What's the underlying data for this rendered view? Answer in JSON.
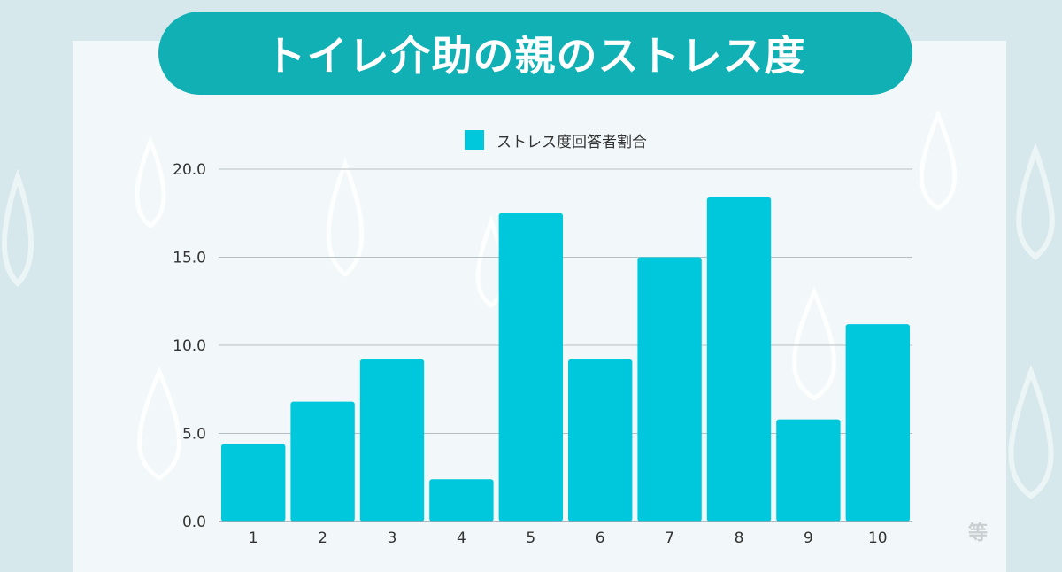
{
  "header": {
    "title": "トイレ介助の親のストレス度"
  },
  "watermark": "等",
  "colors": {
    "background": "#d6e8ec",
    "panel": "#f2f8f9",
    "title_pill": "#10b0b4",
    "bar": "#00c8dc",
    "grid": "#b5bfc3"
  },
  "chart_data": {
    "type": "bar",
    "categories": [
      "1",
      "2",
      "3",
      "4",
      "5",
      "6",
      "7",
      "8",
      "9",
      "10"
    ],
    "series": [
      {
        "name": "ストレス度回答者割合",
        "values": [
          4.4,
          6.8,
          9.2,
          2.4,
          17.5,
          9.2,
          15.0,
          18.4,
          5.8,
          11.2
        ]
      }
    ],
    "title": "トイレ介助の親のストレス度",
    "ylim": [
      0,
      20
    ],
    "yticks": [
      "0.0",
      "5.0",
      "10.0",
      "15.0",
      "20.0"
    ],
    "grid": true,
    "legend": "top-center"
  }
}
